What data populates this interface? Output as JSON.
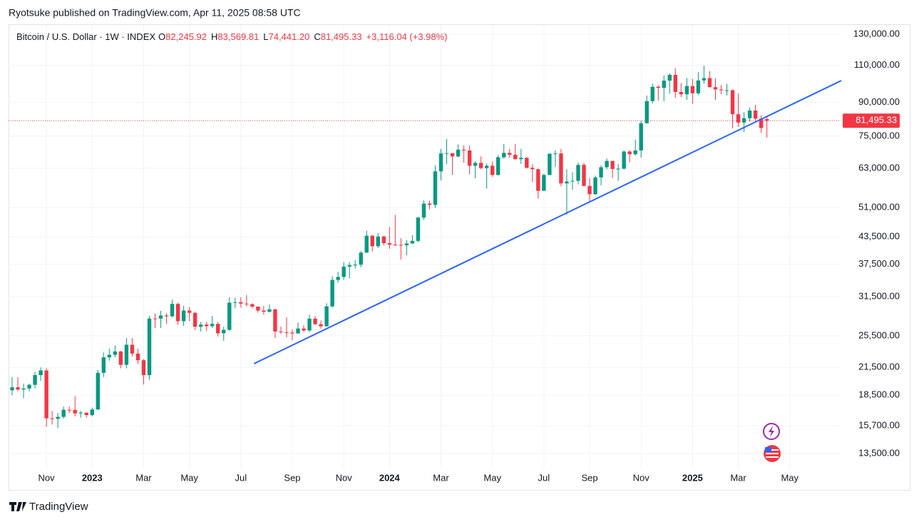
{
  "attribution": "Ryotsuke published on TradingView.com, Apr 11, 2025 08:58 UTC",
  "brand": "TradingView",
  "chart_data": {
    "type": "candlestick",
    "title": "Bitcoin / U.S. Dollar · 1W · INDEX",
    "legend": {
      "open_label": "O",
      "open": "82,245.92",
      "high_label": "H",
      "high": "83,569.81",
      "low_label": "L",
      "low": "74,441.20",
      "close_label": "C",
      "close": "81,495.33",
      "change": "+3,116.04 (+3.98%)"
    },
    "categories": [
      null,
      null,
      null,
      null,
      null,
      null,
      "Nov",
      null,
      null,
      null,
      null,
      null,
      null,
      null,
      "2023",
      null,
      null,
      null,
      null,
      null,
      null,
      null,
      null,
      "Mar",
      null,
      null,
      null,
      null,
      null,
      null,
      null,
      "May",
      null,
      null,
      null,
      null,
      null,
      null,
      null,
      null,
      "Jul",
      null,
      null,
      null,
      null,
      null,
      null,
      null,
      null,
      "Sep",
      null,
      null,
      null,
      null,
      null,
      null,
      null,
      null,
      "Nov",
      null,
      null,
      null,
      null,
      null,
      null,
      null,
      "2024",
      null,
      null,
      null,
      null,
      null,
      null,
      null,
      null,
      "Mar",
      null,
      null,
      null,
      null,
      null,
      null,
      null,
      null,
      "May",
      null,
      null,
      null,
      null,
      null,
      null,
      null,
      null,
      "Jul",
      null,
      null,
      null,
      null,
      null,
      null,
      null,
      "Sep",
      null,
      null,
      null,
      null,
      null,
      null,
      null,
      null,
      "Nov",
      null,
      null,
      null,
      null,
      null,
      null,
      null,
      null,
      "2025",
      null,
      null,
      null,
      null,
      null,
      null,
      null,
      "Mar",
      null,
      null,
      null,
      null,
      null,
      null,
      null,
      null,
      "May"
    ],
    "open": [
      19000,
      19310,
      19080,
      19190,
      19570,
      20630,
      21150,
      16330,
      16290,
      16460,
      17100,
      17090,
      16770,
      16840,
      16620,
      17130,
      20880,
      22700,
      23020,
      23440,
      21800,
      24300,
      23170,
      22350,
      20620,
      28000,
      27990,
      28460,
      28330,
      30300,
      27600,
      29230,
      28870,
      26780,
      27100,
      26870,
      27200,
      25850,
      26340,
      30500,
      30580,
      30350,
      30250,
      29860,
      29230,
      29040,
      29420,
      26100,
      26000,
      25950,
      25830,
      26530,
      26250,
      27980,
      27160,
      26850,
      29900,
      34500,
      35050,
      37060,
      37380,
      37450,
      39970,
      43780,
      41370,
      43600,
      42070,
      41730,
      41700,
      41580,
      42000,
      42580,
      48300,
      52100,
      51730,
      62000,
      68300,
      68400,
      67200,
      69700,
      69400,
      63900,
      64900,
      63100,
      63900,
      60800,
      66900,
      68500,
      67800,
      66200,
      66700,
      63200,
      62700,
      55800,
      60800,
      68200,
      68300,
      58100,
      58700,
      58900,
      64200,
      57300,
      54800,
      60000,
      63400,
      65600,
      62800,
      62900,
      69000,
      68000,
      69400,
      80400,
      90600,
      97900,
      97300,
      101200,
      104400,
      95200,
      94000,
      98300,
      94500,
      101300,
      102600,
      97700,
      96500,
      96100,
      96100,
      84400,
      80700,
      82600,
      86100,
      82400,
      82245.92,
      null,
      null,
      null,
      null
    ],
    "high": [
      20400,
      20400,
      19700,
      19700,
      21000,
      21500,
      21400,
      17000,
      16800,
      17400,
      17400,
      18400,
      17000,
      16800,
      17300,
      21200,
      23300,
      23800,
      24200,
      23500,
      25200,
      25200,
      23800,
      22500,
      28400,
      28800,
      29200,
      28800,
      31000,
      30500,
      30000,
      29800,
      29000,
      27500,
      27500,
      28400,
      27500,
      26800,
      31400,
      31300,
      31400,
      31800,
      30400,
      29900,
      30000,
      30200,
      29500,
      26800,
      28200,
      26400,
      27400,
      27000,
      28600,
      28400,
      27700,
      30400,
      35200,
      36000,
      38000,
      38000,
      38400,
      40300,
      45000,
      44000,
      44400,
      43800,
      45900,
      49000,
      43200,
      42800,
      43900,
      48500,
      53000,
      52900,
      64000,
      70000,
      73800,
      68400,
      71700,
      71300,
      71300,
      65500,
      67200,
      64700,
      65400,
      67700,
      71900,
      70000,
      71900,
      70000,
      67000,
      64400,
      63000,
      61200,
      68300,
      69400,
      70000,
      62700,
      61700,
      65000,
      64900,
      59800,
      60600,
      64100,
      66500,
      65600,
      64500,
      69400,
      69500,
      73600,
      81500,
      93400,
      99600,
      98800,
      104100,
      105300,
      108300,
      99900,
      102700,
      102200,
      106000,
      109600,
      106500,
      102500,
      98800,
      99500,
      96500,
      94400,
      85300,
      87500,
      88800,
      84000,
      83569.81,
      null,
      null,
      null,
      null
    ],
    "low": [
      18500,
      18900,
      18200,
      18900,
      19200,
      20000,
      15600,
      15800,
      15500,
      16300,
      16800,
      16500,
      16400,
      16400,
      16500,
      17100,
      20400,
      22300,
      22700,
      21400,
      21400,
      22800,
      21900,
      19600,
      20100,
      26600,
      26600,
      27200,
      28200,
      27100,
      26900,
      27600,
      26300,
      26100,
      26200,
      26600,
      25400,
      24800,
      26200,
      29600,
      29700,
      29900,
      29600,
      28900,
      28600,
      28900,
      25200,
      25800,
      25300,
      24900,
      25800,
      26000,
      26000,
      27000,
      26500,
      26800,
      29700,
      34000,
      34500,
      34800,
      36700,
      36900,
      39900,
      40200,
      41000,
      41500,
      40800,
      41500,
      38500,
      39400,
      41900,
      42300,
      47700,
      50500,
      50900,
      59000,
      64500,
      60800,
      66800,
      65000,
      61000,
      59700,
      62700,
      56500,
      60200,
      60600,
      66400,
      66700,
      66100,
      64500,
      63000,
      58500,
      53500,
      56000,
      60700,
      63500,
      57200,
      49000,
      56100,
      57800,
      57200,
      52600,
      54600,
      57500,
      62700,
      59800,
      58900,
      62600,
      65100,
      67500,
      66800,
      80200,
      89400,
      90800,
      90500,
      94300,
      92200,
      92500,
      91200,
      89300,
      93500,
      99500,
      97500,
      91200,
      94100,
      93400,
      78200,
      78800,
      76600,
      81200,
      81600,
      76300,
      74441.2,
      null,
      null,
      null,
      null
    ],
    "close": [
      19310,
      19080,
      19190,
      19570,
      20630,
      21150,
      16330,
      16290,
      16460,
      17100,
      17090,
      16770,
      16840,
      16620,
      17130,
      20880,
      22700,
      23020,
      23440,
      21800,
      24300,
      23170,
      22350,
      20620,
      28000,
      27990,
      28460,
      28330,
      30300,
      27600,
      29230,
      28870,
      26780,
      27100,
      26870,
      27200,
      25850,
      26340,
      30500,
      30580,
      30350,
      30250,
      29860,
      29230,
      29040,
      29420,
      26100,
      26000,
      25950,
      25830,
      26530,
      26250,
      27980,
      27160,
      26850,
      29900,
      34500,
      35050,
      37060,
      37380,
      37450,
      39970,
      43780,
      41370,
      43600,
      42070,
      41730,
      41700,
      41580,
      42000,
      42580,
      48300,
      52100,
      51730,
      62000,
      68300,
      68400,
      67200,
      69700,
      69400,
      63900,
      64900,
      63100,
      63900,
      60800,
      66900,
      68500,
      67800,
      66200,
      66700,
      63200,
      62700,
      55800,
      60800,
      68200,
      68300,
      58100,
      58700,
      58900,
      64200,
      57300,
      54800,
      60000,
      63400,
      65600,
      62800,
      62900,
      69000,
      68000,
      69400,
      80400,
      90600,
      97900,
      97300,
      101200,
      104400,
      95200,
      94000,
      98300,
      94500,
      101300,
      102600,
      97700,
      96500,
      96100,
      96100,
      84400,
      80700,
      82600,
      86100,
      82400,
      78379.29,
      81495.33,
      null,
      null,
      null,
      null
    ],
    "up_color": "#089981",
    "down_color": "#f23645",
    "log_scale": true,
    "grid": true,
    "ylim": [
      12550,
      136700
    ],
    "yticks": [
      {
        "value": 130000,
        "label": "130,000.00"
      },
      {
        "value": 110000,
        "label": "110,000.00"
      },
      {
        "value": 90000,
        "label": "90,000.00"
      },
      {
        "value": 75000,
        "label": "75,000.00"
      },
      {
        "value": 63000,
        "label": "63,000.00"
      },
      {
        "value": 51000,
        "label": "51,000.00"
      },
      {
        "value": 43500,
        "label": "43,500.00"
      },
      {
        "value": 37500,
        "label": "37,500.00"
      },
      {
        "value": 31500,
        "label": "31,500.00"
      },
      {
        "value": 25500,
        "label": "25,500.00"
      },
      {
        "value": 21500,
        "label": "21,500.00"
      },
      {
        "value": 18500,
        "label": "18,500.00"
      },
      {
        "value": 15700,
        "label": "15,700.00"
      },
      {
        "value": 13500,
        "label": "13,500.00"
      }
    ],
    "last_price_label": "81,495.33",
    "trendline": {
      "x": [
        42.3,
        145
      ],
      "y": [
        21940,
        101200
      ],
      "color": "#2962ff"
    }
  }
}
